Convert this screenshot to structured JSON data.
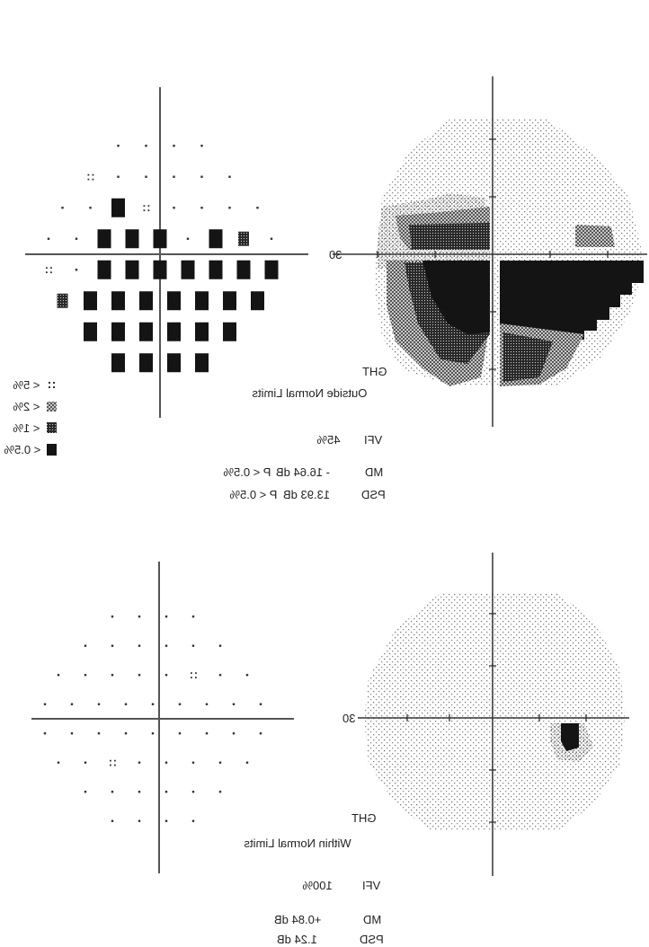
{
  "top": {
    "ght_label": "GHT",
    "ght_result": "Outside Normal Limits",
    "vfi_label": "VFI",
    "vfi_value": "45%",
    "md_label": "MD",
    "md_value": "- 16.64 dB",
    "md_p": "P < 0.5%",
    "psd_label": "PSD",
    "psd_value": "13.93 dB",
    "psd_p": "P < 0.5%",
    "axis_label": "30",
    "legend": [
      {
        "label": "< 5%",
        "symbol": "dots4"
      },
      {
        "label": "< 2%",
        "symbol": "checker"
      },
      {
        "label": "< 1%",
        "symbol": "dense"
      },
      {
        "label": "< 0.5%",
        "symbol": "black"
      }
    ]
  },
  "bottom": {
    "ght_label": "GHT",
    "ght_result": "Within Normal Limits",
    "vfi_label": "VFI",
    "vfi_value": "100%",
    "md_label": "MD",
    "md_value": "+0.84 dB",
    "psd_label": "PSD",
    "psd_value": "1.24 dB",
    "axis_label": "30"
  },
  "colors": {
    "ink": "#1a1a1a",
    "axis": "#444444",
    "stipple": "#6e6e6e",
    "gray_fill": "#9a9a9a"
  }
}
